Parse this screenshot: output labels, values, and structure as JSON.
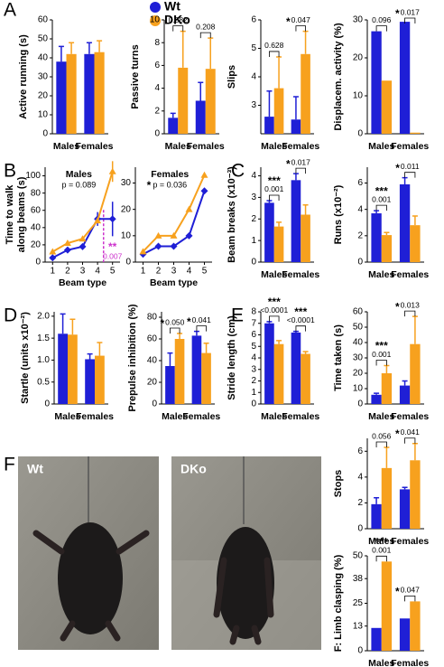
{
  "legend": [
    {
      "name": "Wt",
      "color": "#1f1fd6"
    },
    {
      "name": "DKo",
      "color": "#f7a11e"
    }
  ],
  "panel_letters": [
    "A",
    "B",
    "C",
    "D",
    "E",
    "F"
  ],
  "photo_labels": [
    "Wt",
    "DKo"
  ],
  "chart_data": [
    {
      "type": "bar",
      "ylabel": "Active running (s)",
      "categories": [
        "Males",
        "Females"
      ],
      "ylim": [
        0,
        60
      ],
      "yticks": [
        0,
        10,
        20,
        30,
        40,
        50,
        60
      ],
      "series": [
        {
          "color": "#1f1fd6",
          "values": [
            38,
            42
          ],
          "errors": [
            8,
            6
          ]
        },
        {
          "color": "#f7a11e",
          "values": [
            42,
            43
          ],
          "errors": [
            6,
            6
          ]
        }
      ],
      "p_labels": [
        null,
        null
      ],
      "stars": [
        null,
        null
      ]
    },
    {
      "type": "bar",
      "ylabel": "Passive turns",
      "categories": [
        "Males",
        "Females"
      ],
      "ylim": [
        0,
        10
      ],
      "yticks": [
        0,
        2,
        4,
        6,
        8,
        10
      ],
      "series": [
        {
          "color": "#1f1fd6",
          "values": [
            1.4,
            2.9
          ],
          "errors": [
            0.4,
            1.6
          ]
        },
        {
          "color": "#f7a11e",
          "values": [
            5.8,
            5.7
          ],
          "errors": [
            3.2,
            2.7
          ]
        }
      ],
      "p_labels": [
        "0.582",
        "0.208"
      ],
      "stars": [
        null,
        null
      ]
    },
    {
      "type": "bar",
      "ylabel": "Slips",
      "categories": [
        "Males",
        "Females"
      ],
      "ylim": [
        2,
        6
      ],
      "yticks": [
        3,
        4,
        5,
        6
      ],
      "series": [
        {
          "color": "#1f1fd6",
          "values": [
            2.6,
            2.5
          ],
          "errors": [
            0.9,
            0.8
          ]
        },
        {
          "color": "#f7a11e",
          "values": [
            3.6,
            4.8
          ],
          "errors": [
            1.1,
            0.8
          ]
        }
      ],
      "p_labels": [
        "0.628",
        "0.047"
      ],
      "stars": [
        null,
        "*"
      ]
    },
    {
      "type": "bar",
      "ylabel": "Displacem. activity (%)",
      "categories": [
        "Males",
        "Females"
      ],
      "ylim": [
        0,
        30
      ],
      "yticks": [
        0,
        10,
        20,
        30
      ],
      "series": [
        {
          "color": "#1f1fd6",
          "values": [
            27,
            29.5
          ],
          "errors": [
            null,
            null
          ]
        },
        {
          "color": "#f7a11e",
          "values": [
            14,
            0.3
          ],
          "errors": [
            null,
            null
          ]
        }
      ],
      "p_labels": [
        "0.096",
        "0.017"
      ],
      "stars": [
        null,
        "*"
      ]
    },
    {
      "type": "line",
      "ylabel": [
        "Time to walk",
        "along beams (s)"
      ],
      "xlabel": "Beam type",
      "x": [
        1,
        2,
        3,
        4,
        5
      ],
      "xlim": [
        0.5,
        5.5
      ],
      "xticks": [
        1,
        2,
        3,
        4,
        5
      ],
      "ylim": [
        0,
        110
      ],
      "yticks": [
        0,
        20,
        40,
        60,
        80,
        100
      ],
      "series": [
        {
          "color": "#1f1fd6",
          "values": [
            5,
            14,
            18,
            50,
            50
          ],
          "errors": [
            null,
            null,
            null,
            8,
            20
          ]
        },
        {
          "color": "#f7a11e",
          "values": [
            12,
            22,
            27,
            48,
            105
          ],
          "errors": [
            null,
            null,
            null,
            null,
            12
          ]
        }
      ],
      "annotations": [
        {
          "text": "Males"
        },
        {
          "text": "p = 0.089"
        }
      ],
      "marker": {
        "stars": "**",
        "p": "0.007",
        "color": "#cc33cc"
      }
    },
    {
      "type": "line",
      "xlabel": "Beam type",
      "x": [
        1,
        2,
        3,
        4,
        5
      ],
      "xlim": [
        0.5,
        5.5
      ],
      "xticks": [
        1,
        2,
        3,
        4,
        5
      ],
      "ylim": [
        0,
        36
      ],
      "yticks": [
        0,
        10,
        20,
        30
      ],
      "series": [
        {
          "color": "#1f1fd6",
          "values": [
            3,
            6,
            6,
            10,
            27
          ],
          "errors": [
            null,
            null,
            null,
            null,
            null
          ]
        },
        {
          "color": "#f7a11e",
          "values": [
            4,
            10,
            10,
            20,
            33
          ],
          "errors": [
            null,
            null,
            null,
            null,
            null
          ]
        }
      ],
      "annotations": [
        {
          "text": "Females"
        },
        {
          "stars": "*",
          "text": "p = 0.036"
        }
      ]
    },
    {
      "type": "bar",
      "ylabel": "Beam breaks (x10⁻³)",
      "categories": [
        "Males",
        "Females"
      ],
      "ylim": [
        0,
        4.4
      ],
      "yticks": [
        0,
        1,
        2,
        3,
        4
      ],
      "series": [
        {
          "color": "#1f1fd6",
          "values": [
            2.75,
            3.8
          ],
          "errors": [
            0.1,
            0.3
          ]
        },
        {
          "color": "#f7a11e",
          "values": [
            1.65,
            2.2
          ],
          "errors": [
            0.2,
            0.45
          ]
        }
      ],
      "p_labels": [
        "0.001",
        "0.017"
      ],
      "stars": [
        "***",
        "*"
      ]
    },
    {
      "type": "bar",
      "ylabel": "Runs (x10⁻²)",
      "categories": [
        "Males",
        "Females"
      ],
      "ylim": [
        0,
        7.2
      ],
      "yticks": [
        0,
        2,
        4,
        6
      ],
      "series": [
        {
          "color": "#1f1fd6",
          "values": [
            3.7,
            5.9
          ],
          "errors": [
            0.2,
            0.5
          ]
        },
        {
          "color": "#f7a11e",
          "values": [
            2.05,
            2.8
          ],
          "errors": [
            0.2,
            0.7
          ]
        }
      ],
      "p_labels": [
        "0.001",
        "0.011"
      ],
      "stars": [
        "***",
        "*"
      ]
    },
    {
      "type": "bar",
      "ylabel": "Startle (units x10⁻²)",
      "categories": [
        "Males",
        "Females"
      ],
      "ylim": [
        0,
        2.1
      ],
      "yticks": [
        0,
        0.5,
        {
          "value": 1,
          "label": "1.0"
        },
        1.5,
        {
          "value": 2,
          "label": "2.0"
        }
      ],
      "series": [
        {
          "color": "#1f1fd6",
          "values": [
            1.6,
            1.02
          ],
          "errors": [
            0.45,
            0.12
          ]
        },
        {
          "color": "#f7a11e",
          "values": [
            1.58,
            1.1
          ],
          "errors": [
            0.35,
            0.3
          ]
        }
      ],
      "p_labels": [
        null,
        null
      ],
      "stars": [
        null,
        null
      ]
    },
    {
      "type": "bar",
      "ylabel": "Prepulse inhibition (%)",
      "categories": [
        "Males",
        "Females"
      ],
      "ylim": [
        0,
        85
      ],
      "yticks": [
        0,
        20,
        40,
        60,
        80
      ],
      "series": [
        {
          "color": "#1f1fd6",
          "values": [
            35,
            63
          ],
          "errors": [
            12,
            4
          ]
        },
        {
          "color": "#f7a11e",
          "values": [
            60,
            47
          ],
          "errors": [
            5,
            9
          ]
        }
      ],
      "p_labels": [
        "0.050",
        "0.041"
      ],
      "stars": [
        "*",
        "*"
      ]
    },
    {
      "type": "bar",
      "ylabel": "Stride length (cm)",
      "categories": [
        "Males",
        "Females"
      ],
      "ylim": [
        0,
        8
      ],
      "yticks": [
        0,
        1,
        2,
        3,
        4,
        5,
        6,
        7,
        8
      ],
      "series": [
        {
          "color": "#1f1fd6",
          "values": [
            7.0,
            6.2
          ],
          "errors": [
            0.15,
            0.1
          ]
        },
        {
          "color": "#f7a11e",
          "values": [
            5.2,
            4.35
          ],
          "errors": [
            0.3,
            0.2
          ]
        }
      ],
      "p_labels": [
        "<0.0001",
        "<0.0001"
      ],
      "stars": [
        "***",
        "***"
      ]
    },
    {
      "type": "bar",
      "ylabel": "Time taken (s)",
      "categories": [
        "Males",
        "Females"
      ],
      "ylim": [
        0,
        60
      ],
      "yticks": [
        0,
        10,
        20,
        30,
        40,
        50,
        60
      ],
      "series": [
        {
          "color": "#1f1fd6",
          "values": [
            6,
            12
          ],
          "errors": [
            1,
            3
          ]
        },
        {
          "color": "#f7a11e",
          "values": [
            20,
            39
          ],
          "errors": [
            5,
            18
          ]
        }
      ],
      "p_labels": [
        "0.001",
        "0.013"
      ],
      "stars": [
        "***",
        "*"
      ]
    },
    {
      "type": "bar",
      "ylabel": "Stops",
      "categories": [
        "Males",
        "Females"
      ],
      "ylim": [
        0,
        7
      ],
      "yticks": [
        0,
        2,
        4,
        6
      ],
      "series": [
        {
          "color": "#1f1fd6",
          "values": [
            1.9,
            3.05
          ],
          "errors": [
            0.5,
            0.15
          ]
        },
        {
          "color": "#f7a11e",
          "values": [
            4.7,
            5.3
          ],
          "errors": [
            1.6,
            1.3
          ]
        }
      ],
      "p_labels": [
        "0.056",
        "0.041"
      ],
      "stars": [
        null,
        "*"
      ]
    },
    {
      "type": "bar",
      "ylabel": "F: Limb clasping (%)",
      "categories": [
        "Males",
        "Females"
      ],
      "ylim": [
        0,
        50
      ],
      "yticks": [
        0,
        13,
        25,
        38,
        50
      ],
      "series": [
        {
          "color": "#1f1fd6",
          "values": [
            12,
            17
          ],
          "errors": [
            null,
            null
          ]
        },
        {
          "color": "#f7a11e",
          "values": [
            47,
            26
          ],
          "errors": [
            null,
            null
          ]
        }
      ],
      "p_labels": [
        "0.001",
        "0.047"
      ],
      "stars": [
        "***",
        "*"
      ]
    }
  ]
}
